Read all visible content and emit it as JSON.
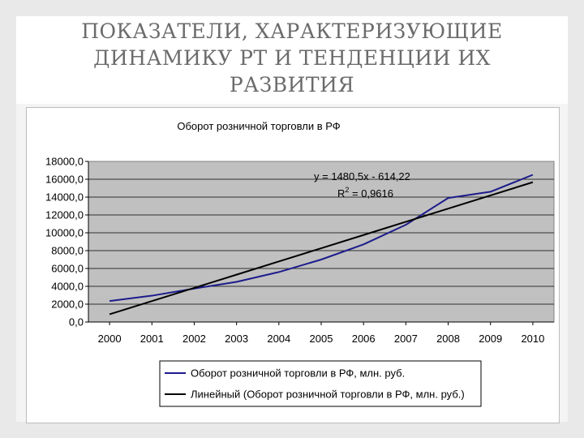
{
  "slide": {
    "title_lines": [
      "ПОКАЗАТЕЛИ, ХАРАКТЕРИЗУЮЩИЕ",
      "ДИНАМИКУ РТ И ТЕНДЕНЦИИ ИХ",
      "РАЗВИТИЯ"
    ]
  },
  "chart_data": {
    "type": "line",
    "title": "Оборот розничной торговли в РФ",
    "xlabel": "",
    "ylabel": "",
    "categories": [
      "2000",
      "2001",
      "2002",
      "2003",
      "2004",
      "2005",
      "2006",
      "2007",
      "2008",
      "2009",
      "2010"
    ],
    "y_ticks": [
      "0,0",
      "2000,0",
      "4000,0",
      "6000,0",
      "8000,0",
      "10000,0",
      "12000,0",
      "14000,0",
      "16000,0",
      "18000,0"
    ],
    "ylim": [
      0,
      18000
    ],
    "grid": "horizontal",
    "plot_background": "#c0c0c0",
    "series": [
      {
        "name": "Оборот розничной торговли в РФ, млн. руб.",
        "color": "#1c1c8c",
        "values": [
          2350,
          2950,
          3750,
          4500,
          5600,
          7000,
          8700,
          10900,
          13900,
          14600,
          16500
        ]
      },
      {
        "name": "Линейный (Оборот розничной торговли в РФ, млн. руб.)",
        "color": "#000000",
        "trendline": {
          "slope": 1480.5,
          "intercept": -614.22
        },
        "values": [
          866.28,
          2346.78,
          3827.28,
          5307.78,
          6788.28,
          8268.78,
          9749.28,
          11229.78,
          12710.28,
          14190.78,
          15671.28
        ]
      }
    ],
    "equation": "y = 1480,5x - 614,22",
    "r2_label": "R",
    "r2_exponent": "2",
    "r2_value": " = 0,9616",
    "legend_position": "bottom"
  }
}
